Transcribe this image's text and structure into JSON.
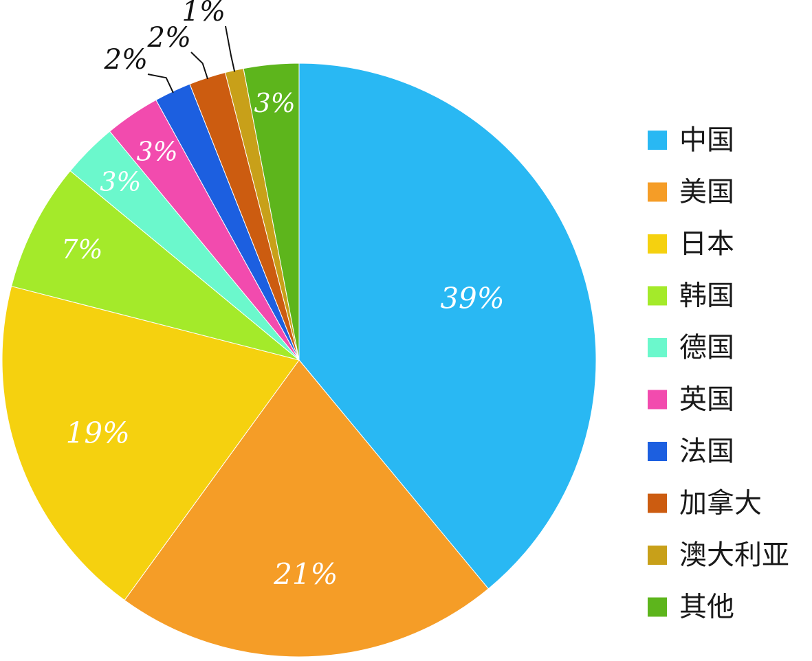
{
  "chart_data": {
    "type": "pie",
    "slices": [
      {
        "label": "中国",
        "value": 39,
        "value_label": "39%",
        "color": "#29B8F3"
      },
      {
        "label": "美国",
        "value": 21,
        "value_label": "21%",
        "color": "#F59D27"
      },
      {
        "label": "日本",
        "value": 19,
        "value_label": "19%",
        "color": "#F5D10F"
      },
      {
        "label": "韩国",
        "value": 7,
        "value_label": "7%",
        "color": "#A4EA2A"
      },
      {
        "label": "德国",
        "value": 3,
        "value_label": "3%",
        "color": "#6BF8CC"
      },
      {
        "label": "英国",
        "value": 3,
        "value_label": "3%",
        "color": "#F24BAE"
      },
      {
        "label": "法国",
        "value": 2,
        "value_label": "2%",
        "color": "#1C5FE0"
      },
      {
        "label": "加拿大",
        "value": 2,
        "value_label": "2%",
        "color": "#CC5C10"
      },
      {
        "label": "澳大利亚",
        "value": 1,
        "value_label": "1%",
        "color": "#C8A019"
      },
      {
        "label": "其他",
        "value": 3,
        "value_label": "3%",
        "color": "#5DB51C"
      }
    ],
    "start_angle_deg": 0,
    "direction": "clockwise",
    "legend_position": "right"
  }
}
